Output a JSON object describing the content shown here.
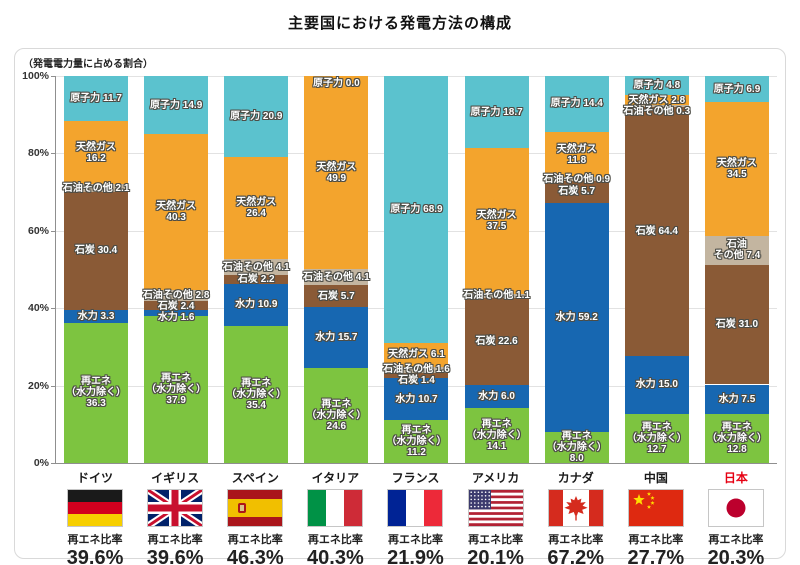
{
  "chart_data": {
    "type": "bar",
    "stacked": true,
    "title": "主要国における発電方法の構成",
    "axis_note": "（発電電力量に占める割合）",
    "value_unit": "%",
    "ylim": [
      0,
      100
    ],
    "yticks": [
      100,
      80,
      60,
      40,
      20,
      0
    ],
    "grid": true,
    "categories": [
      "ドイツ",
      "イギリス",
      "スペイン",
      "イタリア",
      "フランス",
      "アメリカ",
      "カナダ",
      "中国",
      "日本"
    ],
    "countries": [
      {
        "name": "ドイツ",
        "flag": "germany",
        "name_color": "#1a1a1a",
        "renewable_ratio": "39.6%"
      },
      {
        "name": "イギリス",
        "flag": "uk",
        "name_color": "#1a1a1a",
        "renewable_ratio": "39.6%"
      },
      {
        "name": "スペイン",
        "flag": "spain",
        "name_color": "#1a1a1a",
        "renewable_ratio": "46.3%"
      },
      {
        "name": "イタリア",
        "flag": "italy",
        "name_color": "#1a1a1a",
        "renewable_ratio": "40.3%"
      },
      {
        "name": "フランス",
        "flag": "france",
        "name_color": "#1a1a1a",
        "renewable_ratio": "21.9%"
      },
      {
        "name": "アメリカ",
        "flag": "usa",
        "name_color": "#1a1a1a",
        "renewable_ratio": "20.1%"
      },
      {
        "name": "カナダ",
        "flag": "canada",
        "name_color": "#1a1a1a",
        "renewable_ratio": "67.2%"
      },
      {
        "name": "中国",
        "flag": "china",
        "name_color": "#1a1a1a",
        "renewable_ratio": "27.7%"
      },
      {
        "name": "日本",
        "flag": "japan",
        "name_color": "#e60012",
        "renewable_ratio": "20.3%"
      }
    ],
    "ratio_caption": "再エネ比率",
    "series_bottom_to_top": [
      {
        "name": "再エネ（水力除く）",
        "color": "#7dc440",
        "values": [
          36.3,
          37.9,
          35.4,
          24.6,
          11.2,
          14.1,
          8.0,
          12.7,
          12.8
        ],
        "labels": [
          "再エネ\n（水力除く）\n36.3",
          "再エネ\n（水力除く）\n37.9",
          "再エネ\n（水力除く）\n35.4",
          "再エネ\n（水力除く）\n24.6",
          "再エネ\n（水力除く）\n11.2",
          "再エネ\n（水力除く）\n14.1",
          "再エネ\n（水力除く）\n8.0",
          "再エネ\n（水力除く）\n12.7",
          "再エネ\n（水力除く）\n12.8"
        ]
      },
      {
        "name": "水力",
        "color": "#1767b1",
        "values": [
          3.3,
          1.6,
          10.9,
          15.7,
          10.7,
          6.0,
          59.2,
          15.0,
          7.5
        ],
        "labels": [
          "水力 3.3",
          "水力 1.6",
          "水力 10.9",
          "水力 15.7",
          "水力 10.7",
          "水力 6.0",
          "水力 59.2",
          "水力 15.0",
          "水力 7.5"
        ]
      },
      {
        "name": "石炭",
        "color": "#8a5a36",
        "values": [
          30.4,
          2.4,
          2.2,
          5.7,
          1.4,
          22.6,
          5.7,
          64.4,
          31.0
        ],
        "labels": [
          "石炭 30.4",
          "石炭 2.4",
          "石炭 2.2",
          "石炭 5.7",
          "石炭 1.4",
          "石炭 22.6",
          "石炭 5.7",
          "石炭 64.4",
          "石炭 31.0"
        ]
      },
      {
        "name": "石油その他",
        "color": "#c3b5a0",
        "values": [
          2.1,
          2.8,
          4.1,
          4.1,
          1.6,
          1.1,
          0.9,
          0.3,
          7.4
        ],
        "labels": [
          "石油その他 2.1",
          "石油その他 2.8",
          "石油その他 4.1",
          "石油その他 4.1",
          "石油その他 1.6",
          "石油その他 1.1",
          "石油その他 0.9",
          "石油その他 0.3",
          "石油\nその他 7.4"
        ]
      },
      {
        "name": "天然ガス",
        "color": "#f3a42d",
        "values": [
          16.2,
          40.3,
          26.4,
          49.9,
          6.1,
          37.5,
          11.8,
          2.8,
          34.5
        ],
        "labels": [
          "天然ガス\n16.2",
          "天然ガス\n40.3",
          "天然ガス\n26.4",
          "天然ガス\n49.9",
          "天然ガス 6.1",
          "天然ガス\n37.5",
          "天然ガス\n11.8",
          "天然ガス 2.8",
          "天然ガス\n34.5"
        ]
      },
      {
        "name": "原子力",
        "color": "#5bc2ce",
        "values": [
          11.7,
          14.9,
          20.9,
          0.0,
          68.9,
          18.7,
          14.4,
          4.8,
          6.9
        ],
        "labels": [
          "原子力 11.7",
          "原子力 14.9",
          "原子力 20.9",
          "原子力 0.0",
          "原子力 68.9",
          "原子力 18.7",
          "原子力 14.4",
          "原子力 4.8",
          "原子力 6.9"
        ]
      }
    ]
  }
}
